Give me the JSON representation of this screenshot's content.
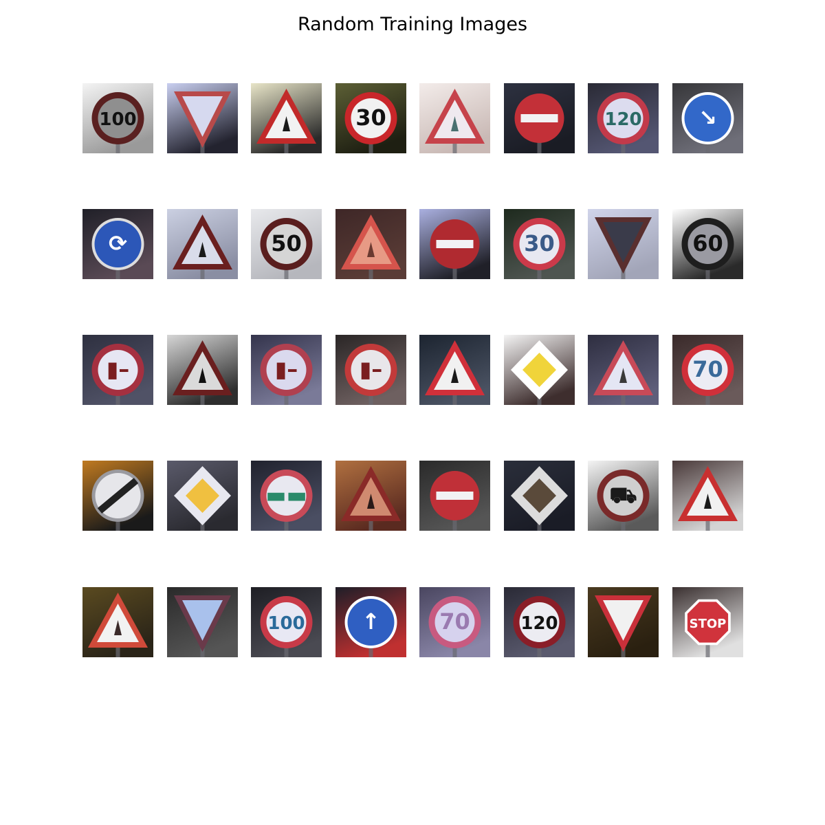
{
  "figure": {
    "title": "Random Training Images",
    "rows": 5,
    "cols": 8
  },
  "images": [
    {
      "kind": "circle-num",
      "text": "100",
      "bg": [
        "#f4f4f4",
        "#9a9a9a"
      ],
      "ring": "#5a2020",
      "fill": "#8f8f8f",
      "ink": "#111111"
    },
    {
      "kind": "yield",
      "bg": [
        "#c9cff0",
        "#23232f"
      ],
      "ring": "#b84a4a",
      "fill": "#d6d9ef"
    },
    {
      "kind": "tri-sym",
      "bg": [
        "#e8e5c8",
        "#2a2a2a"
      ],
      "ring": "#c22a2a",
      "fill": "#f2f2f2",
      "ink": "#1a1a1a"
    },
    {
      "kind": "circle-num",
      "text": "30",
      "bg": [
        "#5c5f35",
        "#1e1f12"
      ],
      "ring": "#c9262a",
      "fill": "#f1f1f1",
      "ink": "#111111"
    },
    {
      "kind": "tri-sym",
      "bg": [
        "#f3ecea",
        "#c9b9b5"
      ],
      "ring": "#c6434b",
      "fill": "#efe9ef",
      "ink": "#4a7070"
    },
    {
      "kind": "no-entry",
      "bg": [
        "#2d3140",
        "#1a1c24"
      ],
      "ring": "#c33038",
      "fill": "#c33038"
    },
    {
      "kind": "circle-num",
      "text": "120",
      "bg": [
        "#2a2a35",
        "#545672"
      ],
      "ring": "#c23a4a",
      "fill": "#dcdcef",
      "ink": "#2b6a66"
    },
    {
      "kind": "blue-circle",
      "text": "↘",
      "bg": [
        "#37373a",
        "#6e6e78"
      ],
      "ring": "#ffffff",
      "fill": "#3268c9",
      "ink": "#ffffff"
    },
    {
      "kind": "blue-circle",
      "text": "⟳",
      "bg": [
        "#202028",
        "#5a4a55"
      ],
      "ring": "#dddddd",
      "fill": "#2c57b8",
      "ink": "#ffffff"
    },
    {
      "kind": "tri-sym",
      "bg": [
        "#cbd0e2",
        "#8a8ea3"
      ],
      "ring": "#6a1f1f",
      "fill": "#d9dcea",
      "ink": "#1a1a1a"
    },
    {
      "kind": "circle-num",
      "text": "50",
      "bg": [
        "#e8e9ec",
        "#b6b7bd"
      ],
      "ring": "#5a1e1e",
      "fill": "#d5d5d5",
      "ink": "#111111"
    },
    {
      "kind": "tri-sym",
      "bg": [
        "#3e2727",
        "#5a3c36"
      ],
      "ring": "#d5544c",
      "fill": "#e79a85",
      "ink": "#6a3a30"
    },
    {
      "kind": "no-entry",
      "bg": [
        "#aab0e0",
        "#202028"
      ],
      "ring": "#b02a30",
      "fill": "#b02a30"
    },
    {
      "kind": "circle-num",
      "text": "30",
      "bg": [
        "#1e2a1e",
        "#4e5550"
      ],
      "ring": "#cc3a4a",
      "fill": "#e8e8f1",
      "ink": "#3a5a88"
    },
    {
      "kind": "yield",
      "bg": [
        "#d0d4ea",
        "#a2a5b8"
      ],
      "ring": "#5a2f2f",
      "fill": "#3a3b4a"
    },
    {
      "kind": "circle-num",
      "text": "60",
      "bg": [
        "#ffffff",
        "#2a2a2a"
      ],
      "ring": "#1e1e1e",
      "fill": "#9a9aa2",
      "ink": "#111111"
    },
    {
      "kind": "circle-num",
      "text": "▮–",
      "bg": [
        "#2e3040",
        "#505266"
      ],
      "ring": "#a53040",
      "fill": "#e6e6f3",
      "ink": "#7a1e20"
    },
    {
      "kind": "tri-sym",
      "bg": [
        "#d6d6d6",
        "#2e2e2e"
      ],
      "ring": "#6a1f1f",
      "fill": "#dadada",
      "ink": "#111111"
    },
    {
      "kind": "circle-num",
      "text": "▮–",
      "bg": [
        "#34344c",
        "#7a7a98"
      ],
      "ring": "#b04050",
      "fill": "#dad9ee",
      "ink": "#7a1e20"
    },
    {
      "kind": "circle-num",
      "text": "▮–",
      "bg": [
        "#2a2626",
        "#6e6060"
      ],
      "ring": "#c23a3a",
      "fill": "#e8e6ea",
      "ink": "#7a1e20"
    },
    {
      "kind": "tri-sym",
      "bg": [
        "#1c2430",
        "#4a5262"
      ],
      "ring": "#d0303a",
      "fill": "#f1f1f1",
      "ink": "#1a1a1a"
    },
    {
      "kind": "diamond",
      "bg": [
        "#f4f4f4",
        "#3e2e2e"
      ],
      "ring": "#ffffff",
      "fill": "#f0d43a"
    },
    {
      "kind": "tri-sym",
      "bg": [
        "#2e2e40",
        "#5e5e7a"
      ],
      "ring": "#c84a58",
      "fill": "#e4e6f4",
      "ink": "#3a3a3a"
    },
    {
      "kind": "circle-num",
      "text": "70",
      "bg": [
        "#3a2a2a",
        "#6a5a5a"
      ],
      "ring": "#d0303a",
      "fill": "#ececf4",
      "ink": "#3a6a9a"
    },
    {
      "kind": "end-limit",
      "bg": [
        "#c07a20",
        "#1a1a1a"
      ],
      "ring": "#9a9aa0",
      "fill": "#e6e6ea",
      "ink": "#222222"
    },
    {
      "kind": "diamond",
      "bg": [
        "#5a5a6a",
        "#2a2a30"
      ],
      "ring": "#e8e8f0",
      "fill": "#f0c040"
    },
    {
      "kind": "circle-num",
      "text": "▬▬",
      "bg": [
        "#20222e",
        "#4a4e62"
      ],
      "ring": "#c84a58",
      "fill": "#e8e8f0",
      "ink": "#2a8a6a"
    },
    {
      "kind": "tri-sym",
      "bg": [
        "#b07040",
        "#5a2a20"
      ],
      "ring": "#8a2a28",
      "fill": "#d08a70",
      "ink": "#2a1a18"
    },
    {
      "kind": "no-entry",
      "bg": [
        "#2a2a2a",
        "#555555"
      ],
      "ring": "#c03038",
      "fill": "#c03038"
    },
    {
      "kind": "diamond",
      "bg": [
        "#2a2e3a",
        "#1a1c26"
      ],
      "ring": "#dcdcdc",
      "fill": "#5a4a3a"
    },
    {
      "kind": "circle-num",
      "text": "⛟",
      "bg": [
        "#f4f4f4",
        "#5a5a5a"
      ],
      "ring": "#7a2a2a",
      "fill": "#cfcfcf",
      "ink": "#1a1a1a"
    },
    {
      "kind": "tri-sym",
      "bg": [
        "#4a3a3a",
        "#d4d4d4"
      ],
      "ring": "#c83030",
      "fill": "#f1f1f1",
      "ink": "#1a1a1a"
    },
    {
      "kind": "tri-sym",
      "bg": [
        "#5a4a20",
        "#2a2418"
      ],
      "ring": "#d04a3a",
      "fill": "#f2f2f2",
      "ink": "#3a2a2a"
    },
    {
      "kind": "yield",
      "bg": [
        "#2a2a2a",
        "#555555"
      ],
      "ring": "#6a3a4a",
      "fill": "#a9c1ec"
    },
    {
      "kind": "circle-num",
      "text": "100",
      "bg": [
        "#1e1e24",
        "#4a4a52"
      ],
      "ring": "#c83a48",
      "fill": "#e8e8f4",
      "ink": "#2a6a9a"
    },
    {
      "kind": "blue-circle",
      "text": "↑",
      "bg": [
        "#1e1e28",
        "#c03030"
      ],
      "ring": "#ffffff",
      "fill": "#2f5fc2",
      "ink": "#ffffff"
    },
    {
      "kind": "circle-num",
      "text": "70",
      "bg": [
        "#4a4660",
        "#8a86a8"
      ],
      "ring": "#c85a80",
      "fill": "#d6d2ee",
      "ink": "#9a7ab0"
    },
    {
      "kind": "circle-num",
      "text": "120",
      "bg": [
        "#2a2a36",
        "#5a5a6e"
      ],
      "ring": "#8a1e28",
      "fill": "#ececf2",
      "ink": "#111111"
    },
    {
      "kind": "yield",
      "bg": [
        "#4a3a20",
        "#2a2010"
      ],
      "ring": "#c9303a",
      "fill": "#f1f1f1"
    },
    {
      "kind": "octagon",
      "text": "STOP",
      "bg": [
        "#3a3030",
        "#e0e0e0"
      ],
      "ring": "#ffffff",
      "fill": "#d0333c",
      "ink": "#ffffff"
    }
  ]
}
